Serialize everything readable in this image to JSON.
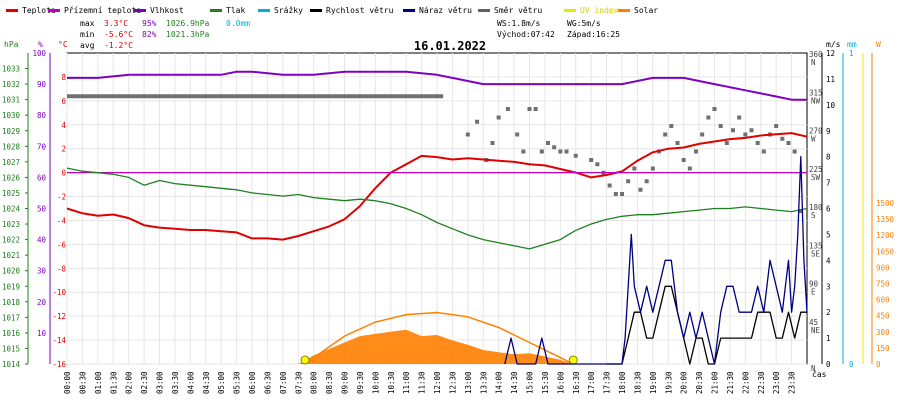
{
  "legend": [
    {
      "label": "Teplota",
      "color": "#e00000"
    },
    {
      "label": "Přízemní teplota",
      "color": "#c000c0"
    },
    {
      "label": "Vlhkost",
      "color": "#8000c0"
    },
    {
      "label": "Tlak",
      "color": "#208020"
    },
    {
      "label": "Srážky",
      "color": "#00b0d0"
    },
    {
      "label": "Rychlost větru",
      "color": "#000000"
    },
    {
      "label": "Náraz větru",
      "color": "#000080"
    },
    {
      "label": "Směr větru",
      "color": "#606060"
    },
    {
      "label": "UV index",
      "color": "#e8e800"
    },
    {
      "label": "Solar",
      "color": "#ff8000"
    }
  ],
  "stats": {
    "max_label": "max",
    "max_temp": "3.3°C",
    "max_hum": "95%",
    "max_press": "1026.9hPa",
    "max_rain": "0.0mm",
    "min_label": "min",
    "min_temp": "-5.6°C",
    "min_hum": "82%",
    "min_press": "1021.3hPa",
    "avg_label": "avg",
    "avg_temp": "-1.2°C",
    "ws": "WS:1.8m/s",
    "wg": "WG:5m/s",
    "sunrise": "Východ:07:42",
    "sunset": "Západ:16:25"
  },
  "unit_labels": {
    "hpa": "hPa",
    "pct": "%",
    "degc": "°C",
    "ms": "m/s",
    "mm": "mm",
    "w": "W",
    "time": "čas"
  },
  "chart_data": {
    "type": "line",
    "title": "16.01.2022",
    "x_labels": [
      "00:00",
      "00:30",
      "01:00",
      "01:30",
      "02:00",
      "02:30",
      "03:00",
      "03:30",
      "04:00",
      "04:30",
      "05:00",
      "05:30",
      "06:00",
      "06:30",
      "07:00",
      "07:30",
      "08:00",
      "08:30",
      "09:00",
      "09:30",
      "10:00",
      "10:30",
      "11:00",
      "11:30",
      "12:00",
      "12:30",
      "13:00",
      "13:30",
      "14:00",
      "14:30",
      "15:00",
      "15:30",
      "16:00",
      "16:30",
      "17:00",
      "17:30",
      "18:00",
      "18:30",
      "19:00",
      "19:30",
      "20:00",
      "20:30",
      "21:00",
      "21:30",
      "22:00",
      "22:30",
      "23:00",
      "23:30"
    ],
    "axes": {
      "hpa": {
        "ticks": [
          1014,
          1015,
          1016,
          1017,
          1018,
          1019,
          1020,
          1021,
          1022,
          1023,
          1024,
          1025,
          1026,
          1027,
          1028,
          1029,
          1030,
          1031,
          1032,
          1033
        ],
        "range": [
          1014,
          1034
        ]
      },
      "pct": {
        "ticks": [
          10,
          20,
          30,
          40,
          50,
          60,
          70,
          80,
          90,
          100
        ],
        "range": [
          0,
          100
        ]
      },
      "degc": {
        "ticks": [
          -16,
          -14,
          -12,
          -10,
          -8,
          -6,
          -4,
          -2,
          0,
          2,
          4,
          6,
          8
        ],
        "range": [
          -16,
          10
        ]
      },
      "dir_labels": [
        {
          "deg": 0,
          "label": "N"
        },
        {
          "deg": 45,
          "label": "NE"
        },
        {
          "deg": 90,
          "label": "E"
        },
        {
          "deg": 135,
          "label": "SE"
        },
        {
          "deg": 180,
          "label": "S"
        },
        {
          "deg": 225,
          "label": "SW"
        },
        {
          "deg": 270,
          "label": "W"
        },
        {
          "deg": 315,
          "label": "NW"
        },
        {
          "deg": 360,
          "label": "N"
        }
      ],
      "ms": {
        "ticks": [
          0,
          1,
          2,
          3,
          4,
          5,
          6,
          7,
          8,
          9,
          10,
          11,
          12
        ],
        "range": [
          0,
          12
        ]
      },
      "mm": {
        "ticks": [
          0,
          1
        ],
        "range": [
          0,
          1
        ]
      },
      "w": {
        "ticks": [
          0,
          150,
          300,
          450,
          600,
          750,
          900,
          1050,
          1200,
          1350,
          1500
        ],
        "range": [
          0,
          1500
        ]
      }
    },
    "series": [
      {
        "name": "Teplota",
        "axis": "degc",
        "x": [
          0,
          0.5,
          1,
          1.5,
          2,
          2.5,
          3,
          3.5,
          4,
          4.5,
          5,
          5.5,
          6,
          6.5,
          7,
          7.5,
          8,
          8.5,
          9,
          9.5,
          10,
          10.5,
          11,
          11.5,
          12,
          12.5,
          13,
          13.5,
          14,
          14.5,
          15,
          15.5,
          16,
          16.5,
          17,
          17.5,
          18,
          18.5,
          19,
          19.5,
          20,
          20.5,
          21,
          21.5,
          22,
          22.5,
          23,
          23.5,
          24
        ],
        "values": [
          -3.0,
          -3.4,
          -3.6,
          -3.5,
          -3.8,
          -4.4,
          -4.6,
          -4.7,
          -4.8,
          -4.8,
          -4.9,
          -5.0,
          -5.5,
          -5.5,
          -5.6,
          -5.3,
          -4.9,
          -4.5,
          -3.9,
          -2.8,
          -1.3,
          0.0,
          0.7,
          1.4,
          1.3,
          1.1,
          1.2,
          1.1,
          1.0,
          0.9,
          0.7,
          0.6,
          0.3,
          0.0,
          -0.4,
          -0.2,
          0.1,
          1.0,
          1.7,
          2.0,
          2.1,
          2.4,
          2.6,
          2.8,
          2.9,
          3.1,
          3.2,
          3.3,
          3.0
        ]
      },
      {
        "name": "Přízemní teplota",
        "axis": "degc",
        "x": [
          0,
          24
        ],
        "values": [
          0,
          0
        ]
      },
      {
        "name": "Vlhkost",
        "axis": "pct",
        "x": [
          0,
          0.5,
          1,
          2,
          3,
          4,
          5,
          5.5,
          6,
          7,
          8,
          9,
          10,
          11,
          12,
          12.5,
          13,
          13.5,
          14,
          15,
          16,
          17,
          18,
          18.5,
          19,
          20,
          21,
          22,
          22.5,
          23,
          23.5,
          24
        ],
        "values": [
          92,
          92,
          92,
          93,
          93,
          93,
          93,
          94,
          94,
          93,
          93,
          94,
          94,
          94,
          93,
          92,
          91,
          90,
          90,
          90,
          90,
          90,
          90,
          91,
          92,
          92,
          90,
          88,
          87,
          86,
          85,
          85
        ]
      },
      {
        "name": "Tlak",
        "axis": "hpa",
        "x": [
          0,
          0.5,
          1,
          1.5,
          2,
          2.5,
          3,
          3.5,
          4,
          4.5,
          5,
          5.5,
          6,
          6.5,
          7,
          7.5,
          8,
          8.5,
          9,
          9.5,
          10,
          10.5,
          11,
          11.5,
          12,
          12.5,
          13,
          13.5,
          14,
          14.5,
          15,
          15.5,
          16,
          16.5,
          17,
          17.5,
          18,
          18.5,
          19,
          19.5,
          20,
          20.5,
          21,
          21.5,
          22,
          22.5,
          23,
          23.5,
          24
        ],
        "values": [
          1026.6,
          1026.4,
          1026.3,
          1026.2,
          1026.0,
          1025.5,
          1025.8,
          1025.6,
          1025.5,
          1025.4,
          1025.3,
          1025.2,
          1025.0,
          1024.9,
          1024.8,
          1024.9,
          1024.7,
          1024.6,
          1024.5,
          1024.6,
          1024.5,
          1024.3,
          1024.0,
          1023.6,
          1023.1,
          1022.7,
          1022.3,
          1022.0,
          1021.8,
          1021.6,
          1021.4,
          1021.7,
          1022.0,
          1022.6,
          1023.0,
          1023.3,
          1023.5,
          1023.6,
          1023.6,
          1023.7,
          1023.8,
          1023.9,
          1024.0,
          1024.0,
          1024.1,
          1024.0,
          1023.9,
          1023.8,
          1024.0
        ]
      },
      {
        "name": "Rychlost větru",
        "axis": "ms",
        "x": [
          17.5,
          18,
          18.2,
          18.4,
          18.6,
          18.8,
          19,
          19.2,
          19.4,
          19.6,
          19.8,
          20,
          20.2,
          20.4,
          20.6,
          20.8,
          21,
          21.2,
          21.4,
          21.6,
          21.8,
          22,
          22.2,
          22.4,
          22.6,
          22.8,
          23,
          23.2,
          23.4,
          23.6,
          23.8,
          24
        ],
        "values": [
          0,
          0,
          1,
          2,
          2,
          1,
          1,
          2,
          3,
          3,
          2,
          1,
          0,
          1,
          1,
          0,
          0,
          1,
          1,
          1,
          1,
          1,
          1,
          2,
          2,
          2,
          1,
          1,
          2,
          1,
          2,
          2
        ]
      },
      {
        "name": "Náraz větru",
        "axis": "ms",
        "x": [
          14.2,
          14.4,
          14.6,
          14.8,
          15,
          15.2,
          15.4,
          15.6,
          15.8,
          16,
          16.2,
          16.4,
          16.6,
          16.8,
          17,
          17.2,
          17.4,
          17.6,
          17.8,
          18,
          18.1,
          18.2,
          18.3,
          18.4,
          18.6,
          18.8,
          19,
          19.2,
          19.4,
          19.6,
          19.8,
          20,
          20.2,
          20.4,
          20.6,
          20.8,
          21,
          21.2,
          21.4,
          21.6,
          21.8,
          22,
          22.2,
          22.4,
          22.6,
          22.8,
          23,
          23.2,
          23.4,
          23.5,
          23.6,
          23.7,
          23.8,
          23.9,
          24
        ],
        "values": [
          0,
          1,
          0,
          0,
          0,
          0,
          1,
          0,
          0,
          0,
          0,
          0,
          0,
          0,
          0,
          0,
          0,
          0,
          0,
          0,
          1,
          3,
          5,
          3,
          2,
          3,
          2,
          3,
          4,
          4,
          2,
          1,
          2,
          1,
          2,
          1,
          0,
          2,
          3,
          3,
          2,
          2,
          2,
          3,
          2,
          4,
          3,
          2,
          4,
          2,
          3,
          5,
          8,
          4,
          2
        ]
      },
      {
        "name": "Solar",
        "axis": "w",
        "type": "area",
        "x": [
          7.5,
          8,
          8.5,
          9,
          9.5,
          10,
          10.5,
          11,
          11.5,
          12,
          12.5,
          13,
          13.5,
          14,
          14.5,
          15,
          15.5,
          16,
          16.4
        ],
        "values": [
          0,
          80,
          140,
          200,
          260,
          280,
          300,
          320,
          260,
          270,
          220,
          180,
          130,
          110,
          90,
          100,
          70,
          40,
          0
        ]
      },
      {
        "name": "Solar",
        "axis": "w",
        "type": "theoretical",
        "x": [
          7.7,
          8,
          9,
          10,
          11,
          12,
          13,
          14,
          15,
          16,
          16.42
        ],
        "values": [
          0,
          60,
          260,
          390,
          460,
          480,
          440,
          340,
          200,
          60,
          0
        ]
      }
    ],
    "wind_direction": {
      "name": "Směr větru",
      "axis": "dir",
      "x": [
        13.0,
        13.3,
        13.6,
        13.8,
        14.0,
        14.3,
        14.6,
        14.8,
        15.0,
        15.2,
        15.4,
        15.6,
        15.8,
        16.0,
        16.2,
        16.5,
        17.0,
        17.2,
        17.4,
        17.6,
        17.8,
        18.0,
        18.2,
        18.4,
        18.6,
        18.8,
        19.0,
        19.2,
        19.4,
        19.6,
        19.8,
        20.0,
        20.2,
        20.4,
        20.6,
        20.8,
        21.0,
        21.2,
        21.4,
        21.6,
        21.8,
        22.0,
        22.2,
        22.4,
        22.6,
        22.8,
        23.0,
        23.2,
        23.4,
        23.6,
        23.8
      ],
      "values": [
        270,
        285,
        240,
        260,
        290,
        300,
        270,
        250,
        300,
        300,
        250,
        260,
        255,
        250,
        250,
        245,
        240,
        235,
        225,
        210,
        200,
        200,
        215,
        230,
        205,
        215,
        230,
        250,
        270,
        280,
        260,
        240,
        230,
        250,
        270,
        290,
        300,
        280,
        260,
        275,
        290,
        270,
        275,
        260,
        250,
        270,
        280,
        265,
        260,
        250,
        180
      ]
    },
    "dir_flat": {
      "x": [
        0,
        12.2
      ],
      "value": 315
    }
  }
}
